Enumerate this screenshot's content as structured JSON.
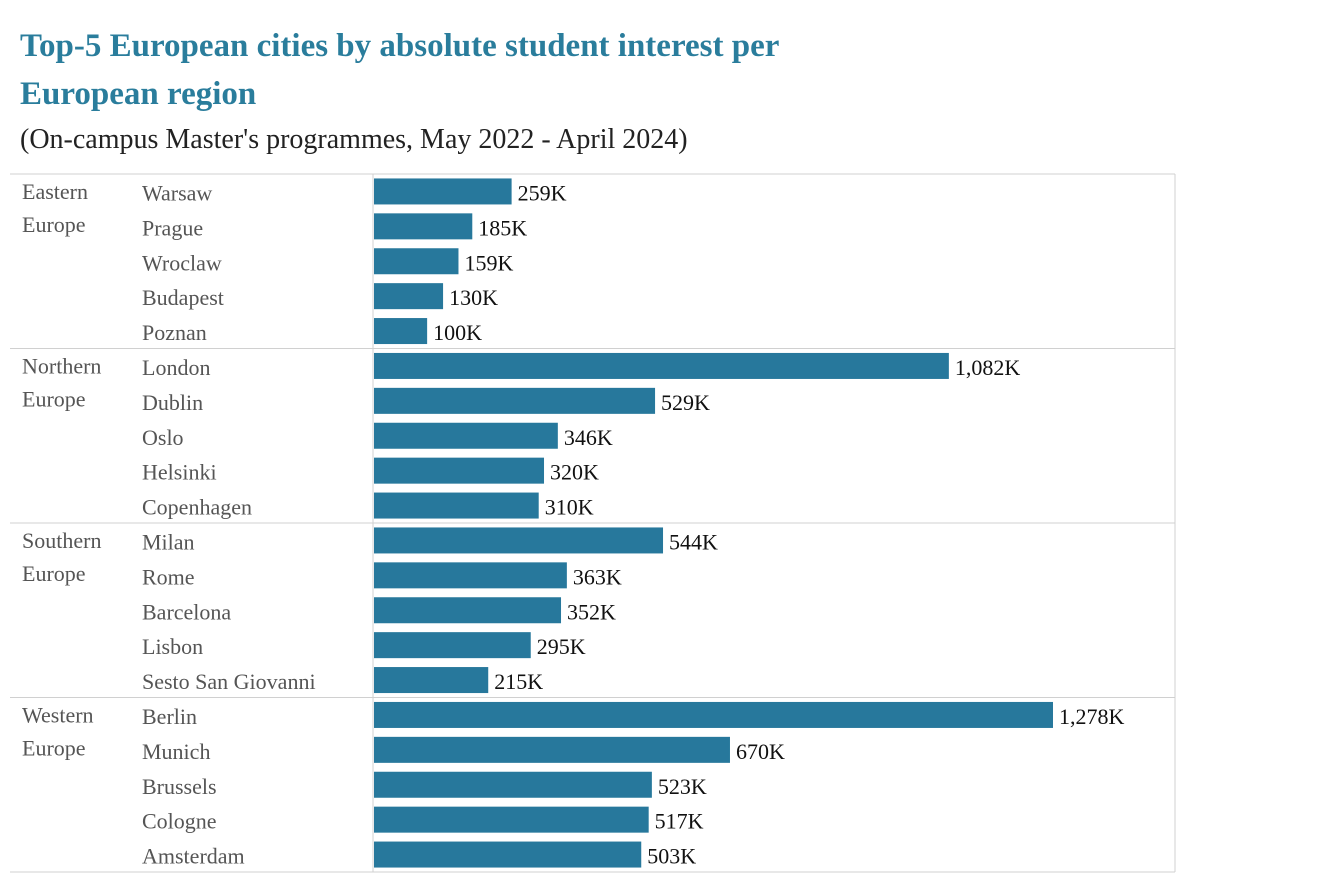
{
  "title": "Top-5 European cities by absolute student interest per European region",
  "subtitle": "(On-campus Master's programmes, May 2022 - April 2024)",
  "colors": {
    "title": "#2a7d9c",
    "bar": "#27789c",
    "divider": "#d0d0d0",
    "row_label": "#555555",
    "value_label": "#111111"
  },
  "chart_data": {
    "type": "bar",
    "orientation": "horizontal",
    "grid": false,
    "legend": "none",
    "xlim": [
      0,
      1300
    ],
    "value_unit": "K",
    "groups": [
      {
        "region_line1": "Eastern",
        "region_line2": "Europe",
        "bars": [
          {
            "city": "Warsaw",
            "value": 259,
            "label": "259K"
          },
          {
            "city": "Prague",
            "value": 185,
            "label": "185K"
          },
          {
            "city": "Wroclaw",
            "value": 159,
            "label": "159K"
          },
          {
            "city": "Budapest",
            "value": 130,
            "label": "130K"
          },
          {
            "city": "Poznan",
            "value": 100,
            "label": "100K"
          }
        ]
      },
      {
        "region_line1": "Northern",
        "region_line2": "Europe",
        "bars": [
          {
            "city": "London",
            "value": 1082,
            "label": "1,082K"
          },
          {
            "city": "Dublin",
            "value": 529,
            "label": "529K"
          },
          {
            "city": "Oslo",
            "value": 346,
            "label": "346K"
          },
          {
            "city": "Helsinki",
            "value": 320,
            "label": "320K"
          },
          {
            "city": "Copenhagen",
            "value": 310,
            "label": "310K"
          }
        ]
      },
      {
        "region_line1": "Southern",
        "region_line2": "Europe",
        "bars": [
          {
            "city": "Milan",
            "value": 544,
            "label": "544K"
          },
          {
            "city": "Rome",
            "value": 363,
            "label": "363K"
          },
          {
            "city": "Barcelona",
            "value": 352,
            "label": "352K"
          },
          {
            "city": "Lisbon",
            "value": 295,
            "label": "295K"
          },
          {
            "city": "Sesto San Giovanni",
            "value": 215,
            "label": "215K"
          }
        ]
      },
      {
        "region_line1": "Western",
        "region_line2": "Europe",
        "bars": [
          {
            "city": "Berlin",
            "value": 1278,
            "label": "1,278K"
          },
          {
            "city": "Munich",
            "value": 670,
            "label": "670K"
          },
          {
            "city": "Brussels",
            "value": 523,
            "label": "523K"
          },
          {
            "city": "Cologne",
            "value": 517,
            "label": "517K"
          },
          {
            "city": "Amsterdam",
            "value": 503,
            "label": "503K"
          }
        ]
      }
    ]
  }
}
